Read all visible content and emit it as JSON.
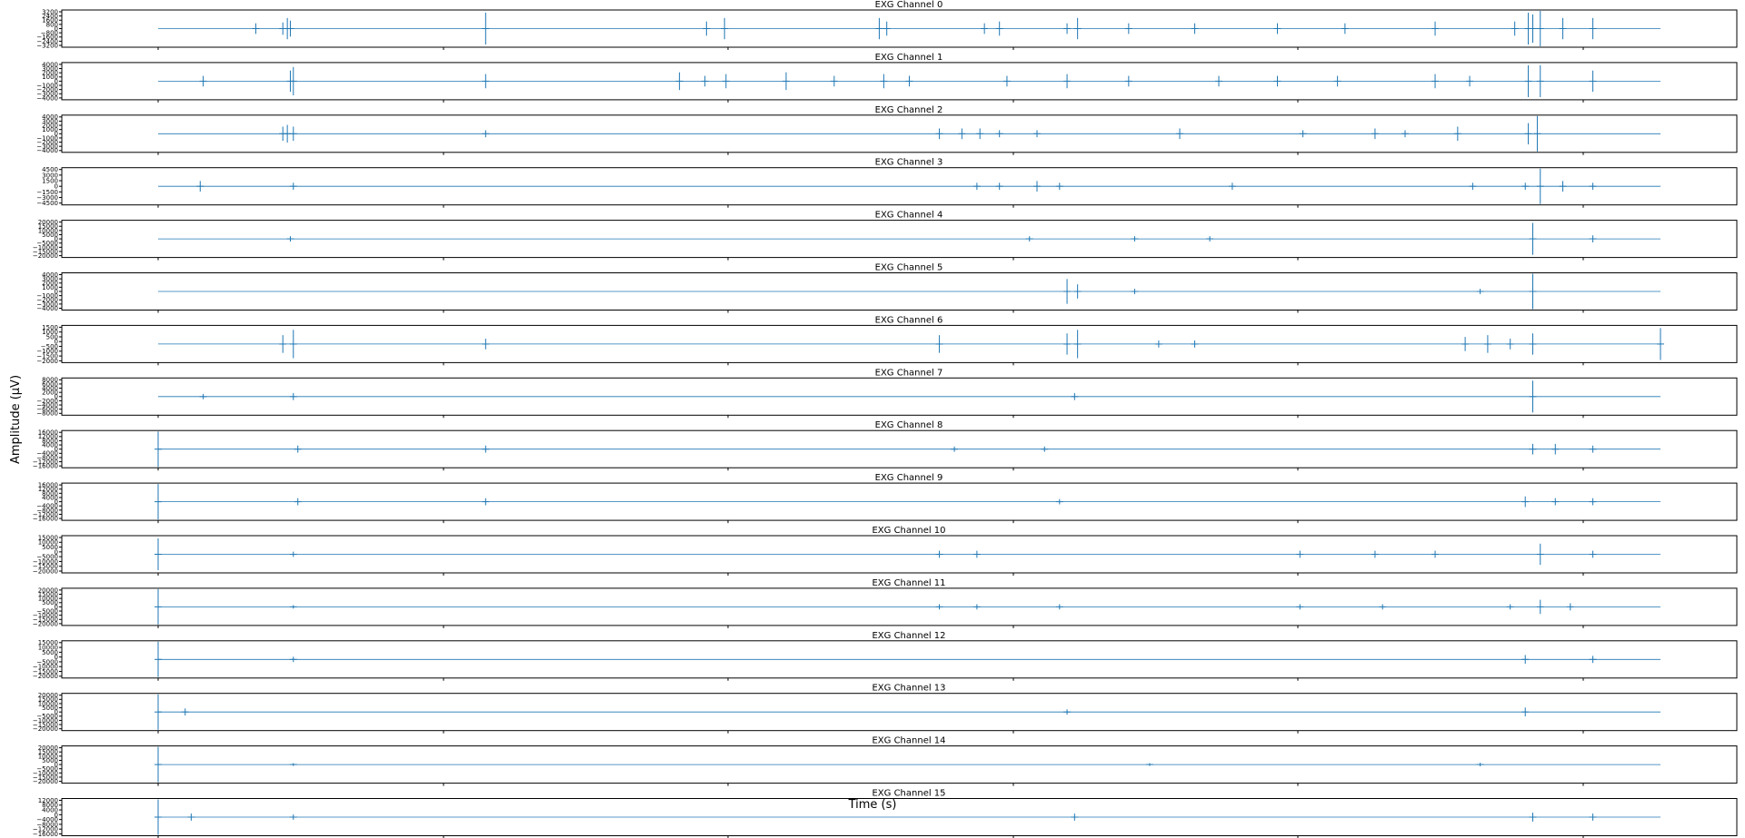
{
  "chart_data": {
    "type": "line",
    "xlabel": "Time (s)",
    "ylabel": "Amplitude (µV)",
    "line_color": "#1f77b4",
    "grid": false,
    "x_range": [
      0,
      1
    ],
    "panels": [
      {
        "title": "EXG Channel 0",
        "yticks": [
          "3200",
          "2400",
          "1600",
          "800",
          "0",
          "−800",
          "−1600",
          "−2400",
          "−3200"
        ],
        "ylim": [
          -3200,
          3200
        ],
        "bursts": [
          [
            0.065,
            0.3
          ],
          [
            0.083,
            0.35
          ],
          [
            0.086,
            0.6
          ],
          [
            0.088,
            0.45
          ],
          [
            0.218,
            0.9
          ],
          [
            0.365,
            0.4
          ],
          [
            0.377,
            0.6
          ],
          [
            0.48,
            0.6
          ],
          [
            0.485,
            0.4
          ],
          [
            0.55,
            0.3
          ],
          [
            0.56,
            0.4
          ],
          [
            0.605,
            0.3
          ],
          [
            0.612,
            0.6
          ],
          [
            0.646,
            0.3
          ],
          [
            0.69,
            0.3
          ],
          [
            0.745,
            0.3
          ],
          [
            0.79,
            0.3
          ],
          [
            0.85,
            0.4
          ],
          [
            0.903,
            0.4
          ],
          [
            0.912,
            0.9
          ],
          [
            0.915,
            0.8
          ],
          [
            0.92,
            1.0
          ],
          [
            0.935,
            0.6
          ],
          [
            0.955,
            0.6
          ]
        ]
      },
      {
        "title": "EXG Channel 1",
        "yticks": [
          "4000",
          "3000",
          "2000",
          "1000",
          "0",
          "−1000",
          "−2000",
          "−3000",
          "−4000"
        ],
        "ylim": [
          -4000,
          4000
        ],
        "bursts": [
          [
            0.03,
            0.3
          ],
          [
            0.088,
            0.6
          ],
          [
            0.09,
            0.8
          ],
          [
            0.218,
            0.4
          ],
          [
            0.347,
            0.5
          ],
          [
            0.364,
            0.3
          ],
          [
            0.378,
            0.4
          ],
          [
            0.418,
            0.5
          ],
          [
            0.45,
            0.3
          ],
          [
            0.483,
            0.4
          ],
          [
            0.5,
            0.3
          ],
          [
            0.565,
            0.3
          ],
          [
            0.605,
            0.4
          ],
          [
            0.646,
            0.3
          ],
          [
            0.706,
            0.3
          ],
          [
            0.745,
            0.3
          ],
          [
            0.785,
            0.3
          ],
          [
            0.85,
            0.4
          ],
          [
            0.873,
            0.3
          ],
          [
            0.912,
            0.9
          ],
          [
            0.92,
            0.9
          ],
          [
            0.955,
            0.6
          ]
        ]
      },
      {
        "title": "EXG Channel 2",
        "yticks": [
          "4000",
          "3000",
          "2000",
          "1000",
          "0",
          "−1000",
          "−2000",
          "−3000",
          "−4000"
        ],
        "ylim": [
          -4000,
          4000
        ],
        "bursts": [
          [
            0.083,
            0.4
          ],
          [
            0.086,
            0.5
          ],
          [
            0.09,
            0.4
          ],
          [
            0.218,
            0.2
          ],
          [
            0.52,
            0.3
          ],
          [
            0.535,
            0.3
          ],
          [
            0.547,
            0.3
          ],
          [
            0.56,
            0.2
          ],
          [
            0.585,
            0.2
          ],
          [
            0.68,
            0.3
          ],
          [
            0.762,
            0.2
          ],
          [
            0.81,
            0.3
          ],
          [
            0.83,
            0.2
          ],
          [
            0.865,
            0.4
          ],
          [
            0.912,
            0.6
          ],
          [
            0.918,
            1.0
          ]
        ]
      },
      {
        "title": "EXG Channel 3",
        "yticks": [
          "4500",
          "3000",
          "1500",
          "0",
          "−1500",
          "−3000",
          "−4500"
        ],
        "ylim": [
          -4500,
          4500
        ],
        "bursts": [
          [
            0.028,
            0.3
          ],
          [
            0.09,
            0.2
          ],
          [
            0.545,
            0.2
          ],
          [
            0.56,
            0.2
          ],
          [
            0.585,
            0.3
          ],
          [
            0.6,
            0.2
          ],
          [
            0.715,
            0.2
          ],
          [
            0.875,
            0.2
          ],
          [
            0.91,
            0.2
          ],
          [
            0.92,
            1.0
          ],
          [
            0.935,
            0.3
          ],
          [
            0.955,
            0.2
          ]
        ]
      },
      {
        "title": "EXG Channel 4",
        "yticks": [
          "20000",
          "15000",
          "10000",
          "5000",
          "0",
          "−5000",
          "−10000",
          "−15000",
          "−20000"
        ],
        "ylim": [
          -20000,
          20000
        ],
        "bursts": [
          [
            0.088,
            0.15
          ],
          [
            0.58,
            0.15
          ],
          [
            0.65,
            0.15
          ],
          [
            0.7,
            0.15
          ],
          [
            0.915,
            0.9
          ],
          [
            0.955,
            0.2
          ]
        ]
      },
      {
        "title": "EXG Channel 5",
        "yticks": [
          "4000",
          "3000",
          "2000",
          "1000",
          "0",
          "−1000",
          "−2000",
          "−3000",
          "−4000"
        ],
        "ylim": [
          -4000,
          4000
        ],
        "bursts": [
          [
            0.605,
            0.7
          ],
          [
            0.612,
            0.4
          ],
          [
            0.65,
            0.15
          ],
          [
            0.88,
            0.15
          ],
          [
            0.915,
            1.0
          ]
        ]
      },
      {
        "title": "EXG Channel 6",
        "yticks": [
          "1500",
          "1000",
          "500",
          "0",
          "−500",
          "−1000",
          "−1500",
          "−2000"
        ],
        "ylim": [
          -2000,
          1500
        ],
        "bursts": [
          [
            0.083,
            0.5
          ],
          [
            0.09,
            0.8
          ],
          [
            0.218,
            0.3
          ],
          [
            0.52,
            0.5
          ],
          [
            0.605,
            0.6
          ],
          [
            0.612,
            0.8
          ],
          [
            0.666,
            0.2
          ],
          [
            0.69,
            0.2
          ],
          [
            0.87,
            0.4
          ],
          [
            0.885,
            0.5
          ],
          [
            0.9,
            0.3
          ],
          [
            0.915,
            0.6
          ],
          [
            1.0,
            0.9
          ]
        ]
      },
      {
        "title": "EXG Channel 7",
        "yticks": [
          "8000",
          "6000",
          "4000",
          "2000",
          "0",
          "−2000",
          "−4000",
          "−6000",
          "−8000"
        ],
        "ylim": [
          -8000,
          8000
        ],
        "bursts": [
          [
            0.03,
            0.15
          ],
          [
            0.09,
            0.2
          ],
          [
            0.61,
            0.2
          ],
          [
            0.915,
            0.9
          ]
        ]
      },
      {
        "title": "EXG Channel 8",
        "yticks": [
          "16000",
          "12000",
          "8000",
          "4000",
          "0",
          "−4000",
          "−8000",
          "−12000",
          "−16000"
        ],
        "ylim": [
          -16000,
          16000
        ],
        "bursts": [
          [
            0.0,
            1.0
          ],
          [
            0.093,
            0.2
          ],
          [
            0.218,
            0.2
          ],
          [
            0.53,
            0.15
          ],
          [
            0.59,
            0.15
          ],
          [
            0.915,
            0.3
          ],
          [
            0.93,
            0.3
          ],
          [
            0.955,
            0.2
          ]
        ]
      },
      {
        "title": "EXG Channel 9",
        "yticks": [
          "16000",
          "12000",
          "8000",
          "4000",
          "0",
          "−4000",
          "−8000",
          "−12000",
          "−16000"
        ],
        "ylim": [
          -16000,
          16000
        ],
        "bursts": [
          [
            0.0,
            1.0
          ],
          [
            0.093,
            0.2
          ],
          [
            0.218,
            0.2
          ],
          [
            0.6,
            0.15
          ],
          [
            0.91,
            0.3
          ],
          [
            0.93,
            0.2
          ],
          [
            0.955,
            0.2
          ]
        ]
      },
      {
        "title": "EXG Channel 10",
        "yticks": [
          "15000",
          "10000",
          "5000",
          "0",
          "−5000",
          "−10000",
          "−15000",
          "−20000"
        ],
        "ylim": [
          -20000,
          15000
        ],
        "bursts": [
          [
            0.0,
            0.9
          ],
          [
            0.09,
            0.15
          ],
          [
            0.52,
            0.2
          ],
          [
            0.545,
            0.2
          ],
          [
            0.76,
            0.2
          ],
          [
            0.81,
            0.2
          ],
          [
            0.85,
            0.2
          ],
          [
            0.92,
            0.6
          ],
          [
            0.955,
            0.2
          ]
        ]
      },
      {
        "title": "EXG Channel 11",
        "yticks": [
          "20000",
          "15000",
          "10000",
          "5000",
          "0",
          "−5000",
          "−10000",
          "−15000",
          "−20000"
        ],
        "ylim": [
          -20000,
          20000
        ],
        "bursts": [
          [
            0.0,
            1.0
          ],
          [
            0.09,
            0.1
          ],
          [
            0.52,
            0.15
          ],
          [
            0.545,
            0.15
          ],
          [
            0.6,
            0.15
          ],
          [
            0.76,
            0.15
          ],
          [
            0.815,
            0.15
          ],
          [
            0.9,
            0.15
          ],
          [
            0.92,
            0.4
          ],
          [
            0.94,
            0.2
          ]
        ]
      },
      {
        "title": "EXG Channel 12",
        "yticks": [
          "15000",
          "10000",
          "5000",
          "0",
          "−5000",
          "−10000",
          "−15000",
          "−20000"
        ],
        "ylim": [
          -20000,
          15000
        ],
        "bursts": [
          [
            0.0,
            1.0
          ],
          [
            0.09,
            0.15
          ],
          [
            0.91,
            0.25
          ],
          [
            0.955,
            0.2
          ]
        ]
      },
      {
        "title": "EXG Channel 13",
        "yticks": [
          "20000",
          "15000",
          "10000",
          "5000",
          "0",
          "−5000",
          "−10000",
          "−15000",
          "−20000"
        ],
        "ylim": [
          -20000,
          20000
        ],
        "bursts": [
          [
            0.0,
            1.0
          ],
          [
            0.018,
            0.2
          ],
          [
            0.605,
            0.15
          ],
          [
            0.91,
            0.25
          ]
        ]
      },
      {
        "title": "EXG Channel 14",
        "yticks": [
          "20000",
          "15000",
          "10000",
          "5000",
          "0",
          "−5000",
          "−10000",
          "−15000",
          "−20000"
        ],
        "ylim": [
          -20000,
          20000
        ],
        "bursts": [
          [
            0.0,
            1.0
          ],
          [
            0.09,
            0.08
          ],
          [
            0.66,
            0.08
          ],
          [
            0.88,
            0.1
          ]
        ]
      },
      {
        "title": "EXG Channel 15",
        "yticks": [
          "12000",
          "8000",
          "4000",
          "0",
          "−4000",
          "−8000",
          "−12000",
          "−16000"
        ],
        "ylim": [
          -16000,
          12000
        ],
        "bursts": [
          [
            0.0,
            1.0
          ],
          [
            0.022,
            0.2
          ],
          [
            0.09,
            0.15
          ],
          [
            0.61,
            0.2
          ],
          [
            0.915,
            0.25
          ],
          [
            0.955,
            0.2
          ]
        ]
      }
    ]
  }
}
